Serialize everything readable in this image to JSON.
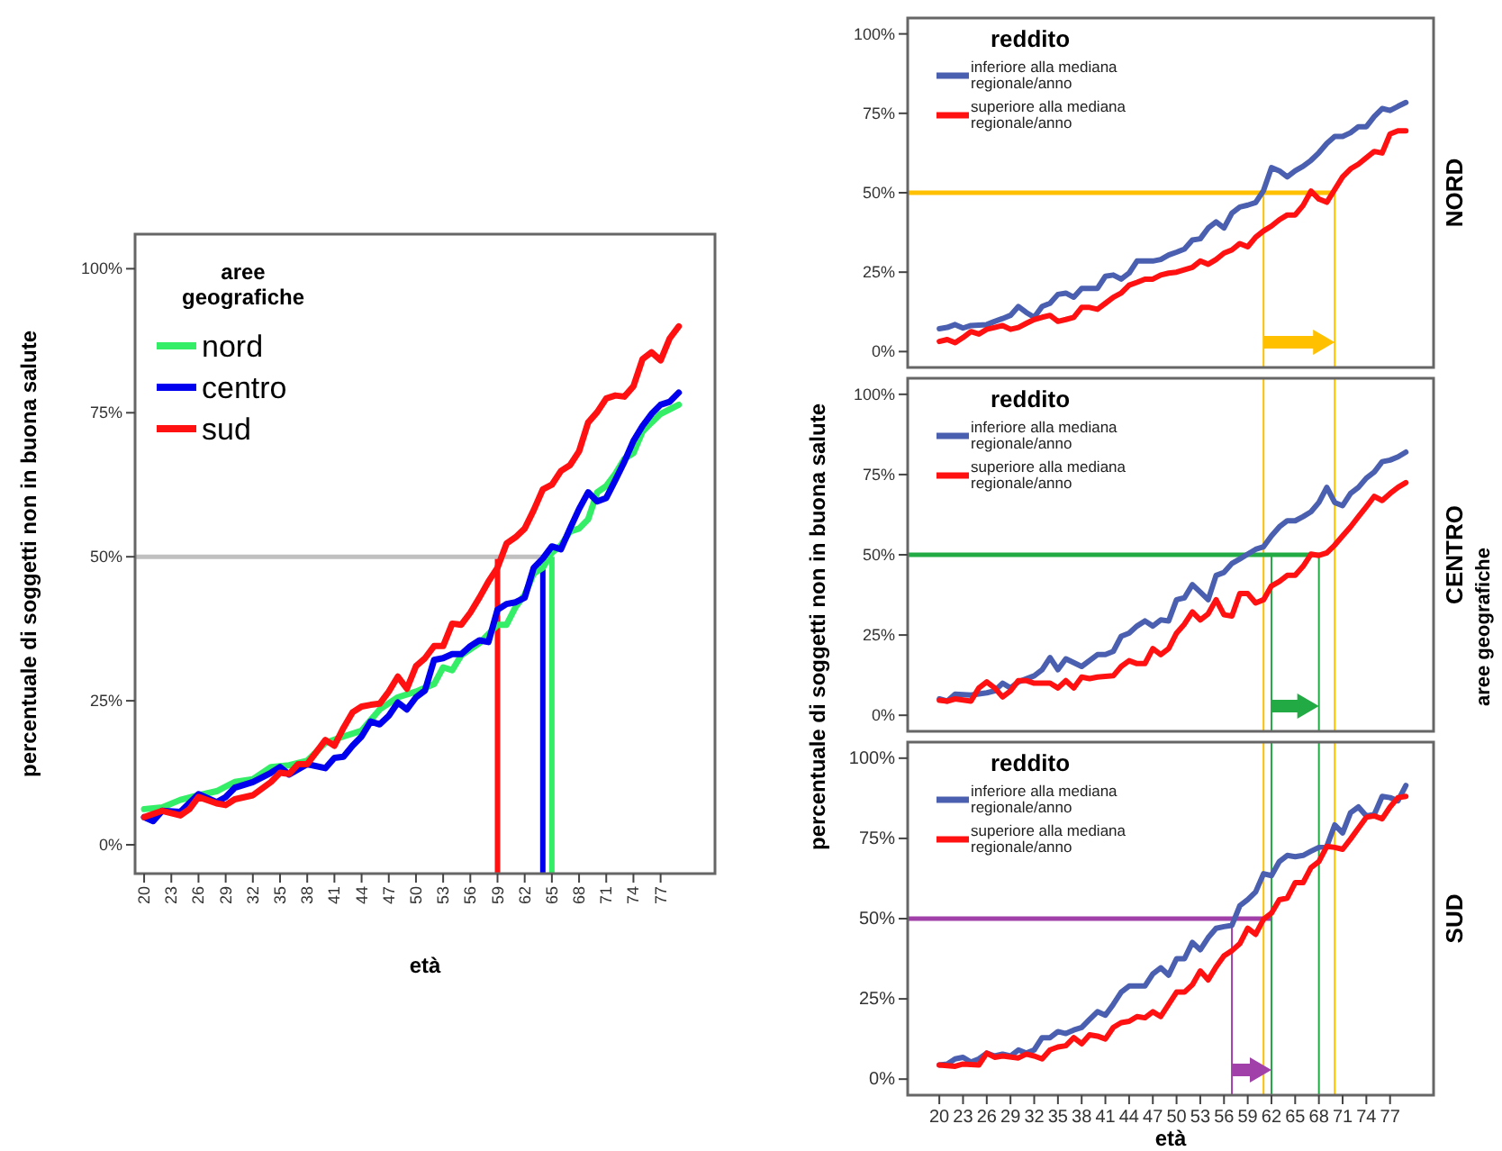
{
  "chart_data": [
    {
      "type": "line",
      "xlabel": "età",
      "ylabel": "percentuale di soggetti non in buona salute",
      "legend_title": "aree geografiche",
      "legend": "top left",
      "xlim": [
        19,
        83
      ],
      "ylim": [
        -5,
        106
      ],
      "xticks": [
        20,
        23,
        26,
        29,
        32,
        35,
        38,
        41,
        44,
        47,
        50,
        53,
        56,
        59,
        62,
        65,
        68,
        71,
        74,
        77
      ],
      "yticks": [
        {
          "value": 0,
          "label": "0%"
        },
        {
          "value": 25,
          "label": "25%"
        },
        {
          "value": 50,
          "label": "50%"
        },
        {
          "value": 75,
          "label": "75%"
        },
        {
          "value": 100,
          "label": "100%"
        }
      ],
      "ref_lines": [
        {
          "axis": "y",
          "value": 50,
          "color": "#c0c0c0"
        },
        {
          "axis": "x",
          "value": 59,
          "color": "#ff1111"
        },
        {
          "axis": "x",
          "value": 64,
          "color": "#0000ee"
        },
        {
          "axis": "x",
          "value": 65,
          "color": "#33ee66"
        }
      ],
      "series": [
        {
          "name": "nord",
          "color": "#33ee66",
          "x": [
            20,
            22,
            24,
            26,
            28,
            30,
            32,
            34,
            36,
            38,
            40,
            42,
            44,
            46,
            48,
            50,
            52,
            53,
            54,
            55,
            57,
            58,
            59,
            60,
            61,
            62,
            63,
            64,
            65,
            66,
            67,
            68,
            69,
            70,
            71,
            72,
            73,
            74,
            75,
            76,
            77,
            79
          ],
          "values": [
            6.2,
            6.5,
            7.8,
            8.6,
            9.3,
            10.9,
            11.4,
            13.5,
            13.8,
            14.6,
            17.7,
            18.8,
            19.8,
            23.5,
            25.6,
            26.6,
            27.9,
            30.8,
            30.3,
            32.9,
            35.0,
            36.6,
            38.2,
            38.2,
            41.3,
            43.4,
            47.1,
            48.1,
            50.7,
            52.0,
            54.4,
            54.9,
            56.5,
            61.2,
            62.3,
            64.4,
            67.0,
            68.0,
            71.7,
            73.3,
            74.8,
            76.4
          ]
        },
        {
          "name": "centro",
          "color": "#0000ee",
          "x": [
            20,
            21,
            22,
            24,
            26,
            28,
            29,
            30,
            32,
            34,
            35,
            36,
            38,
            40,
            41,
            42,
            43,
            44,
            45,
            46,
            47,
            48,
            49,
            50,
            51,
            52,
            53,
            54,
            55,
            56,
            57,
            58,
            59,
            60,
            61,
            62,
            63,
            64,
            65,
            66,
            67,
            68,
            69,
            70,
            71,
            72,
            73,
            74,
            75,
            76,
            77,
            78,
            79
          ],
          "values": [
            4.8,
            4.1,
            5.9,
            5.7,
            8.8,
            7.4,
            8.3,
            9.9,
            10.9,
            12.5,
            13.5,
            12.2,
            14.0,
            13.3,
            15.1,
            15.3,
            17.2,
            18.8,
            21.4,
            20.9,
            22.4,
            24.7,
            23.5,
            25.6,
            26.8,
            32.1,
            32.4,
            33.1,
            33.1,
            34.5,
            35.5,
            35.2,
            40.8,
            41.8,
            42.1,
            42.9,
            48.1,
            49.7,
            51.8,
            51.3,
            54.9,
            58.3,
            61.2,
            59.6,
            60.2,
            63.3,
            66.5,
            70.1,
            72.7,
            74.8,
            76.4,
            76.9,
            78.5
          ]
        },
        {
          "name": "sud",
          "color": "#ff1111",
          "x": [
            20,
            22,
            24,
            25,
            26,
            28,
            29,
            30,
            32,
            34,
            35,
            36,
            37,
            38,
            39,
            40,
            41,
            42,
            43,
            44,
            45,
            46,
            47,
            48,
            49,
            50,
            51,
            52,
            53,
            54,
            55,
            56,
            57,
            58,
            59,
            60,
            61,
            62,
            63,
            64,
            65,
            66,
            67,
            68,
            69,
            70,
            71,
            72,
            73,
            74,
            75,
            76,
            77,
            78,
            79
          ],
          "values": [
            4.8,
            5.9,
            5.1,
            6.2,
            8.3,
            7.2,
            6.9,
            7.9,
            8.6,
            10.9,
            12.5,
            12.3,
            14.0,
            14.0,
            16.1,
            18.2,
            17.2,
            20.3,
            23.0,
            24.0,
            24.3,
            24.5,
            26.6,
            29.2,
            27.1,
            31.0,
            32.4,
            34.5,
            34.5,
            38.4,
            38.2,
            40.3,
            42.9,
            45.7,
            48.1,
            52.3,
            53.4,
            54.9,
            58.1,
            61.7,
            62.5,
            64.9,
            65.9,
            68.3,
            73.3,
            75.1,
            77.5,
            78.0,
            77.8,
            79.6,
            84.3,
            85.5,
            84.1,
            87.9,
            90.0
          ]
        }
      ]
    },
    {
      "type": "line",
      "title": "NORD",
      "legend_title": "reddito",
      "legend": "top left",
      "tick_labels": "y",
      "xlim": [
        16,
        82.5
      ],
      "ylim": [
        -5,
        105
      ],
      "yticks": [
        {
          "value": 0,
          "label": "0%"
        },
        {
          "value": 25,
          "label": "25%"
        },
        {
          "value": 50,
          "label": "50%"
        },
        {
          "value": 75,
          "label": "75%"
        },
        {
          "value": 100,
          "label": "100%"
        }
      ],
      "ref_lines": [
        {
          "axis": "y",
          "value": 50,
          "color": "#ffc000"
        },
        {
          "axis": "x",
          "value": 61,
          "color": "#ffc000"
        },
        {
          "axis": "x",
          "value": 70,
          "color": "#ffc000"
        }
      ],
      "series": [
        {
          "name": "inferiore alla mediana regionale/anno",
          "color": "#4a5fb0",
          "x": [
            20,
            21,
            22,
            23,
            24,
            26,
            27,
            28,
            29,
            30,
            31,
            32,
            33,
            34,
            35,
            36,
            37,
            38,
            40,
            41,
            42,
            43,
            44,
            45,
            47,
            48,
            49,
            50,
            51,
            52,
            53,
            54,
            55,
            56,
            57,
            58,
            59,
            60,
            61,
            62,
            63,
            64,
            65,
            66,
            67,
            68,
            69,
            70,
            71,
            72,
            73,
            74,
            75,
            76,
            77,
            78,
            79
          ],
          "values": [
            7.2,
            7.6,
            8.5,
            7.4,
            8.2,
            8.5,
            9.5,
            10.4,
            11.4,
            14.2,
            12.3,
            10.8,
            14.2,
            15.2,
            18.0,
            18.4,
            17.1,
            19.9,
            19.9,
            23.7,
            24.1,
            22.8,
            24.7,
            28.5,
            28.5,
            29.0,
            30.4,
            31.3,
            32.3,
            35.1,
            35.5,
            38.9,
            40.8,
            38.9,
            43.6,
            45.5,
            46.1,
            46.9,
            50.7,
            57.9,
            56.9,
            55.0,
            56.9,
            58.3,
            60.2,
            62.6,
            65.5,
            67.7,
            67.7,
            68.9,
            70.8,
            70.8,
            74.0,
            76.5,
            75.9,
            77.2,
            78.4
          ]
        },
        {
          "name": "superiore alla mediana regionale/anno",
          "color": "#ff1111",
          "x": [
            20,
            21,
            22,
            23,
            24,
            25,
            26,
            27,
            28,
            29,
            30,
            31,
            32,
            33,
            34,
            35,
            36,
            37,
            38,
            39,
            40,
            41,
            42,
            43,
            44,
            45,
            46,
            47,
            48,
            49,
            50,
            52,
            53,
            54,
            55,
            56,
            57,
            58,
            59,
            60,
            61,
            62,
            63,
            64,
            65,
            66,
            67,
            68,
            69,
            70,
            71,
            72,
            73,
            74,
            75,
            76,
            77,
            78,
            79
          ],
          "values": [
            3.2,
            3.8,
            2.8,
            4.4,
            6.3,
            5.5,
            7.0,
            7.6,
            8.2,
            7.0,
            7.6,
            8.9,
            10.1,
            10.8,
            11.4,
            9.5,
            10.1,
            10.8,
            13.9,
            13.9,
            13.3,
            15.2,
            17.1,
            18.4,
            20.9,
            21.8,
            22.8,
            22.8,
            24.1,
            24.7,
            25.0,
            26.5,
            28.5,
            27.5,
            29.0,
            31.0,
            32.0,
            34.0,
            33.0,
            36.0,
            38.0,
            39.5,
            41.5,
            43.0,
            43.0,
            46.0,
            50.5,
            48.0,
            47.0,
            51.0,
            55.0,
            57.5,
            59.0,
            61.0,
            63.0,
            62.5,
            68.5,
            69.5,
            69.5
          ]
        }
      ]
    },
    {
      "type": "line",
      "title": "CENTRO",
      "ylabel": "percentuale di soggetti non in buona salute",
      "legend_title": "reddito",
      "legend": "top left",
      "tick_labels": "y",
      "xlim": [
        16,
        82.5
      ],
      "ylim": [
        -5,
        105
      ],
      "annotations": [
        "aree geografiche"
      ],
      "yticks": [
        {
          "value": 0,
          "label": "0%"
        },
        {
          "value": 25,
          "label": "25%"
        },
        {
          "value": 50,
          "label": "50%"
        },
        {
          "value": 75,
          "label": "75%"
        },
        {
          "value": 100,
          "label": "100%"
        }
      ],
      "ref_lines": [
        {
          "axis": "y",
          "value": 50,
          "color": "#22aa44"
        },
        {
          "axis": "x",
          "value": 62,
          "color": "#22aa44"
        },
        {
          "axis": "x",
          "value": 68,
          "color": "#22aa44"
        },
        {
          "axis": "x",
          "value": 61,
          "color": "#ffc000"
        },
        {
          "axis": "x",
          "value": 70,
          "color": "#ffc000"
        }
      ],
      "series": [
        {
          "name": "inferiore alla mediana regionale/anno",
          "color": "#4a5fb0",
          "x": [
            20,
            21,
            22,
            24,
            26,
            27,
            28,
            29,
            30,
            32,
            33,
            34,
            35,
            36,
            38,
            40,
            41,
            42,
            43,
            44,
            45,
            46,
            47,
            48,
            49,
            50,
            51,
            52,
            53,
            54,
            55,
            56,
            57,
            58,
            59,
            60,
            61,
            62,
            63,
            64,
            65,
            66,
            67,
            68,
            69,
            70,
            71,
            72,
            73,
            74,
            75,
            76,
            77,
            78,
            79
          ],
          "values": [
            5.1,
            4.4,
            6.6,
            6.3,
            7.0,
            7.6,
            10.0,
            8.5,
            10.4,
            12.3,
            14.2,
            18.0,
            14.2,
            17.6,
            15.2,
            18.9,
            18.9,
            19.9,
            24.6,
            25.6,
            27.8,
            29.4,
            27.8,
            29.7,
            29.4,
            36.0,
            36.6,
            40.7,
            38.4,
            36.0,
            43.6,
            44.5,
            47.3,
            48.7,
            50.2,
            51.7,
            52.5,
            55.9,
            58.7,
            60.6,
            60.6,
            61.9,
            63.4,
            66.3,
            71.0,
            66.3,
            65.3,
            69.1,
            71.0,
            73.9,
            75.8,
            79.0,
            79.5,
            80.5,
            82.0
          ]
        },
        {
          "name": "superiore alla mediana regionale/anno",
          "color": "#ff1111",
          "x": [
            20,
            21,
            22,
            24,
            25,
            26,
            27,
            28,
            29,
            30,
            31,
            32,
            34,
            35,
            36,
            37,
            38,
            39,
            40,
            42,
            43,
            44,
            45,
            46,
            47,
            48,
            49,
            50,
            51,
            52,
            53,
            54,
            55,
            56,
            57,
            58,
            59,
            60,
            61,
            62,
            63,
            64,
            65,
            66,
            67,
            68,
            69,
            70,
            71,
            72,
            73,
            74,
            75,
            76,
            77,
            78,
            79
          ],
          "values": [
            4.7,
            4.4,
            5.1,
            4.4,
            8.5,
            10.4,
            8.5,
            5.7,
            7.6,
            10.8,
            10.8,
            10.0,
            10.0,
            8.5,
            10.8,
            8.5,
            11.9,
            11.4,
            11.9,
            12.3,
            15.2,
            17.0,
            16.1,
            16.1,
            20.8,
            18.9,
            20.8,
            25.6,
            28.4,
            32.2,
            29.7,
            31.6,
            36.0,
            31.3,
            30.9,
            37.9,
            37.9,
            35.0,
            36.0,
            40.3,
            41.7,
            43.6,
            43.6,
            46.4,
            50.2,
            49.8,
            50.6,
            53.0,
            55.9,
            58.7,
            61.9,
            65.0,
            68.2,
            66.9,
            69.1,
            71.0,
            72.5
          ]
        }
      ]
    },
    {
      "type": "line",
      "title": "SUD",
      "xlabel": "età",
      "legend_title": "reddito",
      "legend": "top left",
      "xlim": [
        16,
        82.5
      ],
      "ylim": [
        -5,
        105
      ],
      "xticks": [
        20,
        23,
        26,
        29,
        32,
        35,
        38,
        41,
        44,
        47,
        50,
        53,
        56,
        59,
        62,
        65,
        68,
        71,
        74,
        77
      ],
      "yticks": [
        {
          "value": 0,
          "label": "0%"
        },
        {
          "value": 25,
          "label": "25%"
        },
        {
          "value": 50,
          "label": "50%"
        },
        {
          "value": 75,
          "label": "75%"
        },
        {
          "value": 100,
          "label": "100%"
        }
      ],
      "ref_lines": [
        {
          "axis": "y",
          "value": 50,
          "color": "#a040a8"
        },
        {
          "axis": "x",
          "value": 57,
          "color": "#a040a8"
        },
        {
          "axis": "x",
          "value": 62,
          "color": "#a040a8"
        },
        {
          "axis": "x",
          "value": 61,
          "color": "#ffc000"
        },
        {
          "axis": "x",
          "value": 70,
          "color": "#ffc000"
        },
        {
          "axis": "x",
          "value": 62,
          "color": "#22aa44"
        },
        {
          "axis": "x",
          "value": 68,
          "color": "#22aa44"
        }
      ],
      "series": [
        {
          "name": "inferiore alla mediana regionale/anno",
          "color": "#4a5fb0",
          "x": [
            20,
            21,
            22,
            23,
            24,
            25,
            26,
            27,
            28,
            29,
            30,
            31,
            32,
            33,
            34,
            35,
            36,
            37,
            38,
            39,
            40,
            41,
            42,
            43,
            44,
            45,
            46,
            47,
            48,
            49,
            50,
            51,
            52,
            53,
            54,
            55,
            56,
            57,
            58,
            59,
            60,
            61,
            62,
            63,
            64,
            65,
            66,
            67,
            68,
            69,
            70,
            71,
            72,
            73,
            74,
            75,
            76,
            77,
            78,
            79
          ],
          "values": [
            4.4,
            4.7,
            6.3,
            6.8,
            5.3,
            6.3,
            8.1,
            7.2,
            7.8,
            7.2,
            9.1,
            8.1,
            9.1,
            12.9,
            12.9,
            14.8,
            14.2,
            15.3,
            16.1,
            18.6,
            21.0,
            19.9,
            23.3,
            27.1,
            29.0,
            29.0,
            29.0,
            32.8,
            34.7,
            32.4,
            37.5,
            37.5,
            42.6,
            40.3,
            44.1,
            47.0,
            47.5,
            47.9,
            54.0,
            55.9,
            58.3,
            64.0,
            63.4,
            67.8,
            69.7,
            69.3,
            69.7,
            71.0,
            72.2,
            72.5,
            79.2,
            76.7,
            83.0,
            84.8,
            82.0,
            82.4,
            88.1,
            87.7,
            86.7,
            91.5
          ]
        },
        {
          "name": "superiore alla mediana regionale/anno",
          "color": "#ff1111",
          "x": [
            20,
            22,
            23,
            25,
            26,
            27,
            28,
            30,
            31,
            32,
            33,
            34,
            35,
            36,
            37,
            38,
            39,
            40,
            41,
            42,
            43,
            44,
            45,
            46,
            47,
            48,
            49,
            50,
            51,
            52,
            53,
            54,
            55,
            56,
            57,
            58,
            59,
            60,
            61,
            62,
            63,
            64,
            65,
            66,
            67,
            68,
            69,
            70,
            71,
            72,
            73,
            74,
            75,
            76,
            77,
            78,
            79
          ],
          "values": [
            4.4,
            4.0,
            4.7,
            4.4,
            8.1,
            6.8,
            7.2,
            6.6,
            7.8,
            7.2,
            6.3,
            9.1,
            10.0,
            10.4,
            12.9,
            11.0,
            13.8,
            13.4,
            12.5,
            16.1,
            17.6,
            18.0,
            19.5,
            19.1,
            21.0,
            19.5,
            23.3,
            27.1,
            27.1,
            29.4,
            33.7,
            30.9,
            35.0,
            38.4,
            40.0,
            42.2,
            47.0,
            45.1,
            49.8,
            51.7,
            55.9,
            56.4,
            61.2,
            61.2,
            65.9,
            67.8,
            72.5,
            72.2,
            71.6,
            74.8,
            78.2,
            81.6,
            82.0,
            81.1,
            84.8,
            87.7,
            88.1
          ]
        }
      ]
    }
  ]
}
